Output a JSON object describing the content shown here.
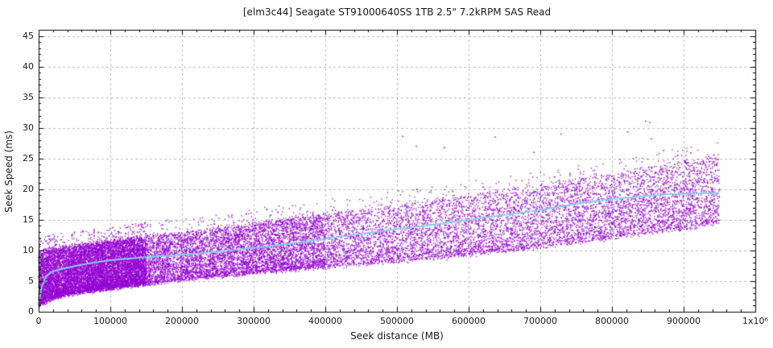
{
  "chart_data": {
    "type": "scatter",
    "title": "[elm3c44] Seagate ST91000640SS 1TB 2.5\" 7.2kRPM SAS Read",
    "xlabel": "Seek distance (MB)",
    "ylabel": "Seek Speed (ms)",
    "xlim": [
      0,
      1000000
    ],
    "ylim": [
      0,
      46
    ],
    "grid": true,
    "legend": "none",
    "style": {
      "background": "#ffffff",
      "axis_color": "#000000",
      "grid_color": "#bbbbbb",
      "text_color": "#1a1a1a"
    },
    "x_ticks": {
      "major_step": 100000,
      "minor_step": 20000,
      "labels": [
        "0",
        "100000",
        "200000",
        "300000",
        "400000",
        "500000",
        "600000",
        "700000",
        "800000",
        "900000",
        "1x10⁶"
      ]
    },
    "y_ticks": {
      "major_step": 5,
      "minor_step": 1,
      "max_label": 45,
      "labels": [
        "0",
        "5",
        "10",
        "15",
        "20",
        "25",
        "30",
        "35",
        "40",
        "45"
      ]
    },
    "series": [
      {
        "name": "seek-samples",
        "style": "dots",
        "color": "#9400d3",
        "n_points": 24000,
        "seed": 1337,
        "x_max": 950000,
        "x_mix": [
          {
            "weight": 0.27,
            "max": 150000
          },
          {
            "weight": 0.18,
            "max": 400000
          },
          {
            "weight": 0.55,
            "max": 950000
          }
        ],
        "band": {
          "x": [
            0,
            20000,
            50000,
            100000,
            150000,
            200000,
            300000,
            400000,
            500000,
            600000,
            700000,
            800000,
            900000,
            950000
          ],
          "lower": [
            1.0,
            2.2,
            3.0,
            3.8,
            4.5,
            5.2,
            6.3,
            7.3,
            8.2,
            9.2,
            10.5,
            12.0,
            13.5,
            14.5
          ],
          "upper": [
            9.8,
            10.3,
            10.8,
            11.5,
            12.3,
            13.0,
            14.5,
            16.0,
            17.5,
            19.0,
            20.7,
            22.5,
            24.5,
            25.5
          ]
        },
        "upper_fuzz_prob": 0.02,
        "upper_fuzz_ms": 2.3,
        "outliers": [
          [
            508000,
            28.6
          ],
          [
            527000,
            27.0
          ],
          [
            566000,
            26.8
          ],
          [
            637000,
            28.5
          ],
          [
            691000,
            26.0
          ],
          [
            729000,
            29.0
          ],
          [
            822000,
            29.3
          ],
          [
            847000,
            31.1
          ],
          [
            853000,
            30.9
          ],
          [
            855000,
            28.2
          ],
          [
            872000,
            26.3
          ],
          [
            910000,
            25.9
          ],
          [
            935000,
            25.3
          ],
          [
            948000,
            24.8
          ]
        ]
      },
      {
        "name": "average-trend",
        "style": "line",
        "color": "#87ceeb",
        "width": 2,
        "points": [
          [
            0,
            1.3
          ],
          [
            4000,
            4.0
          ],
          [
            10000,
            5.8
          ],
          [
            20000,
            6.6
          ],
          [
            40000,
            7.2
          ],
          [
            70000,
            7.9
          ],
          [
            100000,
            8.4
          ],
          [
            150000,
            8.9
          ],
          [
            200000,
            9.3
          ],
          [
            250000,
            9.8
          ],
          [
            300000,
            10.4
          ],
          [
            350000,
            11.1
          ],
          [
            400000,
            11.9
          ],
          [
            450000,
            12.7
          ],
          [
            500000,
            13.5
          ],
          [
            550000,
            14.2
          ],
          [
            600000,
            15.0
          ],
          [
            650000,
            15.8
          ],
          [
            700000,
            16.6
          ],
          [
            750000,
            17.6
          ],
          [
            800000,
            18.4
          ],
          [
            850000,
            18.9
          ],
          [
            880000,
            19.2
          ],
          [
            950000,
            19.4
          ]
        ]
      }
    ]
  }
}
